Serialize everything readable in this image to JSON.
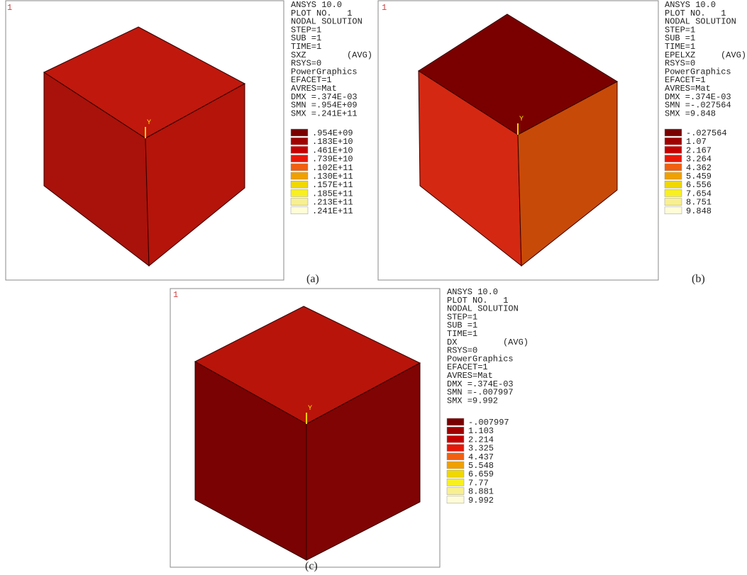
{
  "panels": [
    {
      "plot_marker": "1",
      "axis_label": "Y",
      "caption": "(a)",
      "info_top": [
        "ANSYS 10.0",
        "PLOT NO.   1",
        "NODAL SOLUTION",
        "STEP=1",
        "SUB =1",
        "TIME=1"
      ],
      "quantity": "SXZ",
      "avg": "(AVG)",
      "info_bottom": [
        "RSYS=0",
        "PowerGraphics",
        "EFACET=1",
        "AVRES=Mat",
        "DMX =.374E-03",
        "SMN =.954E+09",
        "SMX =.241E+11"
      ],
      "scale": [
        ".954E+09",
        ".183E+10",
        ".461E+10",
        ".739E+10",
        ".102E+11",
        ".130E+11",
        ".157E+11",
        ".185E+11",
        ".213E+11",
        ".241E+11"
      ]
    },
    {
      "plot_marker": "1",
      "axis_label": "Y",
      "caption": "(b)",
      "info_top": [
        "ANSYS 10.0",
        "PLOT NO.   1",
        "NODAL SOLUTION",
        "STEP=1",
        "SUB =1",
        "TIME=1"
      ],
      "quantity": "EPELXZ",
      "avg": "(AVG)",
      "info_bottom": [
        "RSYS=0",
        "PowerGraphics",
        "EFACET=1",
        "AVRES=Mat",
        "DMX =.374E-03",
        "SMN =-.027564",
        "SMX =9.848"
      ],
      "scale": [
        "-.027564",
        "1.07",
        "2.167",
        "3.264",
        "4.362",
        "5.459",
        "6.556",
        "7.654",
        "8.751",
        "9.848"
      ]
    },
    {
      "plot_marker": "1",
      "axis_label": "Y",
      "caption": "(c)",
      "info_top": [
        "ANSYS 10.0",
        "PLOT NO.   1",
        "NODAL SOLUTION",
        "STEP=1",
        "SUB =1",
        "TIME=1"
      ],
      "quantity": "DX",
      "avg": "(AVG)",
      "info_bottom": [
        "RSYS=0",
        "PowerGraphics",
        "EFACET=1",
        "AVRES=Mat",
        "DMX =.374E-03",
        "SMN =-.007997",
        "SMX =9.992"
      ],
      "scale": [
        "-.007997",
        "1.103",
        "2.214",
        "3.325",
        "4.437",
        "5.548",
        "6.659",
        "7.77",
        "8.881",
        "9.992"
      ]
    }
  ]
}
